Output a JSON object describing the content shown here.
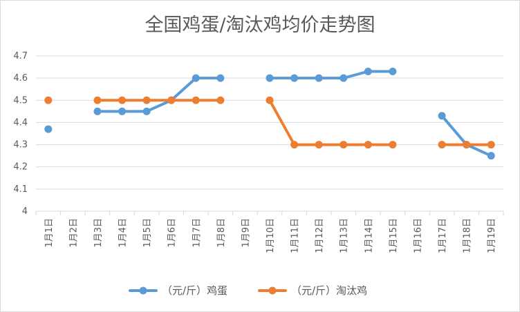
{
  "chart_data": {
    "type": "line",
    "title": "全国鸡蛋/淘汰鸡均价走势图",
    "categories": [
      "1月1日",
      "1月2日",
      "1月3日",
      "1月4日",
      "1月5日",
      "1月6日",
      "1月7日",
      "1月8日",
      "1月9日",
      "1月10日",
      "1月11日",
      "1月12日",
      "1月13日",
      "1月14日",
      "1月15日",
      "1月16日",
      "1月17日",
      "1月18日",
      "1月19日"
    ],
    "y_ticks": [
      "4",
      "4.1",
      "4.2",
      "4.3",
      "4.4",
      "4.5",
      "4.6",
      "4.7"
    ],
    "ylim": [
      4,
      4.7
    ],
    "grid": true,
    "legend_position": "bottom",
    "series": [
      {
        "name": "（元/斤）鸡蛋",
        "color": "#5b9bd5",
        "values": [
          4.37,
          null,
          4.45,
          4.45,
          4.45,
          4.5,
          4.6,
          4.6,
          null,
          4.6,
          4.6,
          4.6,
          4.6,
          4.63,
          4.63,
          null,
          4.43,
          4.3,
          4.25
        ]
      },
      {
        "name": "（元/斤）淘汰鸡",
        "color": "#ed7d31",
        "values": [
          4.5,
          null,
          4.5,
          4.5,
          4.5,
          4.5,
          4.5,
          4.5,
          null,
          4.5,
          4.3,
          4.3,
          4.3,
          4.3,
          4.3,
          null,
          4.3,
          4.3,
          4.3
        ]
      }
    ]
  }
}
